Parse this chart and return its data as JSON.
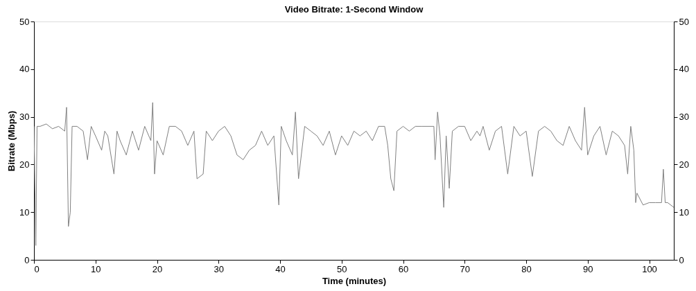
{
  "chart_data": {
    "type": "line",
    "title": "Video Bitrate: 1-Second Window",
    "xlabel": "Time (minutes)",
    "ylabel": "Bitrate (Mbps)",
    "x": [
      0,
      0.3,
      0.5,
      1,
      2,
      3,
      4,
      5,
      5.3,
      5.6,
      5.9,
      6.2,
      7,
      8,
      8.7,
      9.3,
      10,
      11,
      11.5,
      12,
      13,
      13.5,
      14,
      15,
      16,
      17,
      18,
      19,
      19.3,
      19.6,
      20,
      21,
      22,
      23,
      24,
      25,
      26,
      26.5,
      27.5,
      28,
      29,
      30,
      31,
      32,
      33,
      34,
      35,
      36,
      37,
      38,
      39,
      39.8,
      40.2,
      41,
      42,
      42.5,
      43,
      44,
      45,
      46,
      47,
      48,
      49,
      50,
      51,
      52,
      53,
      54,
      55,
      56,
      57,
      57.5,
      58,
      58.5,
      59,
      60,
      61,
      62,
      63,
      64,
      65,
      65.2,
      65.6,
      66,
      66.6,
      67,
      67.5,
      68,
      69,
      70,
      71,
      72,
      72.5,
      73,
      74,
      75,
      76,
      77,
      78,
      79,
      80,
      81,
      82,
      83,
      84,
      85,
      86,
      87,
      88,
      89,
      89.5,
      90,
      91,
      92,
      93,
      94,
      95,
      96,
      96.5,
      97,
      97.5,
      97.8,
      98,
      99,
      100,
      101,
      102,
      102.3,
      102.6,
      103,
      104
    ],
    "series": [
      {
        "color": "#808080",
        "values": [
          28,
          3,
          28,
          28,
          28.5,
          27.5,
          28,
          27,
          32,
          7,
          10,
          28,
          28,
          27,
          21,
          28,
          26,
          23,
          27,
          26,
          18,
          27,
          25,
          22,
          27,
          23,
          28,
          25,
          33,
          18,
          25,
          22,
          28,
          28,
          27,
          24,
          27,
          17,
          18,
          27,
          25,
          27,
          28,
          26,
          22,
          21,
          23,
          24,
          27,
          24,
          26,
          11.5,
          28,
          25,
          22,
          31,
          17,
          28,
          27,
          26,
          24,
          27,
          22,
          26,
          24,
          27,
          26,
          27,
          25,
          28,
          28,
          24,
          17,
          14.5,
          27,
          28,
          27,
          28,
          28,
          28,
          28,
          21,
          31,
          26,
          11,
          26,
          15,
          27,
          28,
          28,
          25,
          27,
          26,
          28,
          23,
          27,
          28,
          18,
          28,
          26,
          27,
          17.5,
          27,
          28,
          27,
          25,
          24,
          28,
          25,
          23,
          32,
          22,
          26,
          28,
          22,
          27,
          26,
          24,
          18,
          28,
          23,
          12,
          14,
          11.5,
          12,
          12,
          12,
          19,
          12,
          12,
          11
        ]
      }
    ],
    "xlim": [
      0,
      104
    ],
    "xticks": [
      0,
      10,
      20,
      30,
      40,
      50,
      60,
      70,
      80,
      90,
      100
    ],
    "ylim": [
      0,
      50
    ],
    "yticks": [
      0,
      10,
      20,
      30,
      40,
      50
    ],
    "y2lim": [
      0,
      50
    ],
    "y2ticks": [
      0,
      10,
      20,
      30,
      40,
      50
    ],
    "grid": false,
    "marker": "none",
    "line_style": "solid"
  }
}
